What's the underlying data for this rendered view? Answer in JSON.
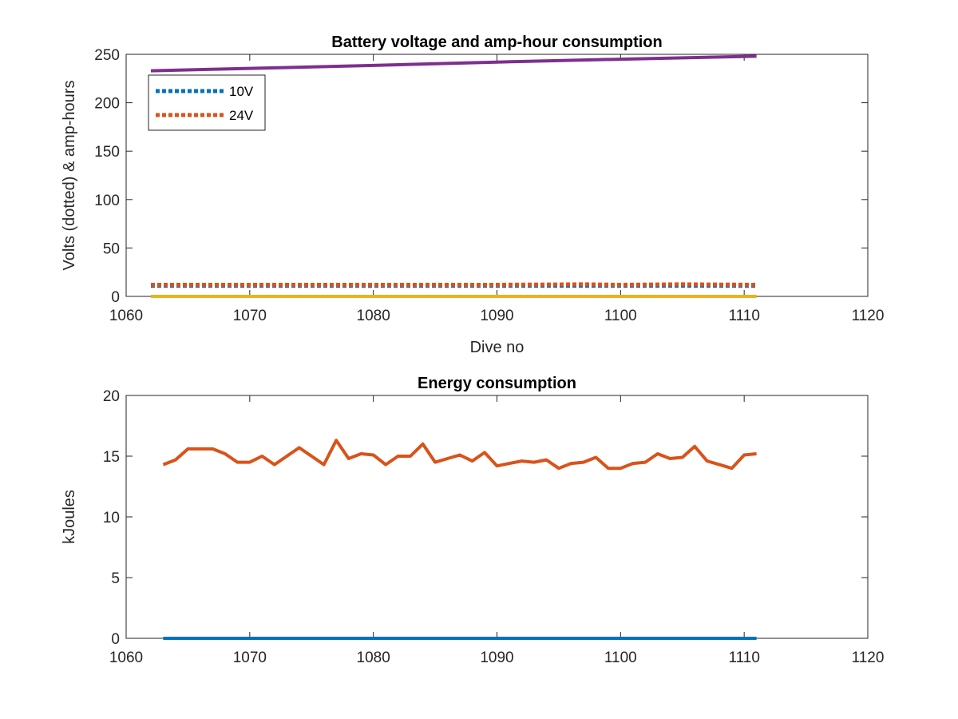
{
  "chart_data": [
    {
      "type": "line",
      "title": "Battery voltage and amp-hour consumption",
      "xlabel": "Dive no",
      "ylabel": "Volts (dotted) & amp-hours",
      "xlim": [
        1060,
        1120
      ],
      "ylim": [
        0,
        250
      ],
      "xticks": [
        1060,
        1070,
        1080,
        1090,
        1100,
        1110,
        1120
      ],
      "yticks": [
        0,
        50,
        100,
        150,
        200,
        250
      ],
      "legend": {
        "position": "top-left",
        "entries": [
          "10V",
          "24V"
        ]
      },
      "series": [
        {
          "name": "10V",
          "style": "dotted",
          "color": "#0072BD",
          "x": [
            1062,
            1111
          ],
          "y": [
            11,
            11
          ]
        },
        {
          "name": "24V",
          "style": "dotted",
          "color": "#D95319",
          "x": [
            1062,
            1070,
            1080,
            1090,
            1097,
            1100,
            1105,
            1111
          ],
          "y": [
            12,
            12,
            12,
            12,
            12.5,
            12,
            12.5,
            12
          ]
        },
        {
          "style": "solid",
          "color": "#EDB120",
          "x": [
            1062,
            1111
          ],
          "y": [
            0,
            0
          ]
        },
        {
          "style": "solid",
          "color": "#7E2F8E",
          "x": [
            1062,
            1070,
            1080,
            1090,
            1100,
            1111
          ],
          "y": [
            233,
            235.5,
            238.5,
            242,
            245,
            248
          ]
        }
      ]
    },
    {
      "type": "line",
      "title": "Energy consumption",
      "xlabel": "",
      "ylabel": "kJoules",
      "xlim": [
        1060,
        1120
      ],
      "ylim": [
        0,
        20
      ],
      "xticks": [
        1060,
        1070,
        1080,
        1090,
        1100,
        1110,
        1120
      ],
      "yticks": [
        0,
        5,
        10,
        15,
        20
      ],
      "series": [
        {
          "style": "solid",
          "color": "#0072BD",
          "x": [
            1063,
            1111
          ],
          "y": [
            0,
            0
          ]
        },
        {
          "style": "solid",
          "color": "#D95319",
          "x": [
            1063,
            1064,
            1065,
            1066,
            1067,
            1068,
            1069,
            1070,
            1071,
            1072,
            1073,
            1074,
            1075,
            1076,
            1077,
            1078,
            1079,
            1080,
            1081,
            1082,
            1083,
            1084,
            1085,
            1086,
            1087,
            1088,
            1089,
            1090,
            1091,
            1092,
            1093,
            1094,
            1095,
            1096,
            1097,
            1098,
            1099,
            1100,
            1101,
            1102,
            1103,
            1104,
            1105,
            1106,
            1107,
            1108,
            1109,
            1110,
            1111
          ],
          "y": [
            14.3,
            14.7,
            15.6,
            15.6,
            15.6,
            15.2,
            14.5,
            14.5,
            15.0,
            14.3,
            15.0,
            15.7,
            15.0,
            14.3,
            16.3,
            14.8,
            15.2,
            15.1,
            14.3,
            15.0,
            15.0,
            16.0,
            14.5,
            14.8,
            15.1,
            14.6,
            15.3,
            14.2,
            14.4,
            14.6,
            14.5,
            14.7,
            14.0,
            14.4,
            14.5,
            14.9,
            14.0,
            14.0,
            14.4,
            14.5,
            15.2,
            14.8,
            14.9,
            15.8,
            14.6,
            14.3,
            14.0,
            15.1,
            15.2
          ]
        }
      ]
    }
  ]
}
